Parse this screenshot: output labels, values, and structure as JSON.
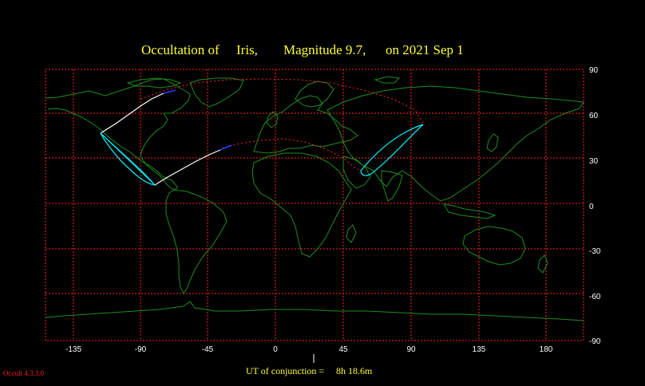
{
  "title": {
    "occultation_prefix": "Occultation  of  ",
    "object": "Iris,",
    "magnitude": "Magnitude 9.7,",
    "date": "on  2021 Sep  1"
  },
  "axes": {
    "x_ticks": [
      "-135",
      "-90",
      "-45",
      "0",
      "45",
      "90",
      "135",
      "180"
    ],
    "y_ticks": [
      "90",
      "60",
      "30",
      "0",
      "-30",
      "-60",
      "-90"
    ]
  },
  "conjunction": {
    "label": "UT of conjunction =",
    "value": "8h 18.6m"
  },
  "software": {
    "version": "Occult 4.3.3.0"
  },
  "colors": {
    "background": "#000000",
    "grid": "#ff2020",
    "coast": "#1e8c1e",
    "title": "#ffff33",
    "axis_text": "#ffffff",
    "central_line": "#ffffff",
    "night_segment": "#2a3cff",
    "horizon_limit": "#00e5ee",
    "sun_limit": "#ff2020",
    "version_text": "#ff2020"
  }
}
